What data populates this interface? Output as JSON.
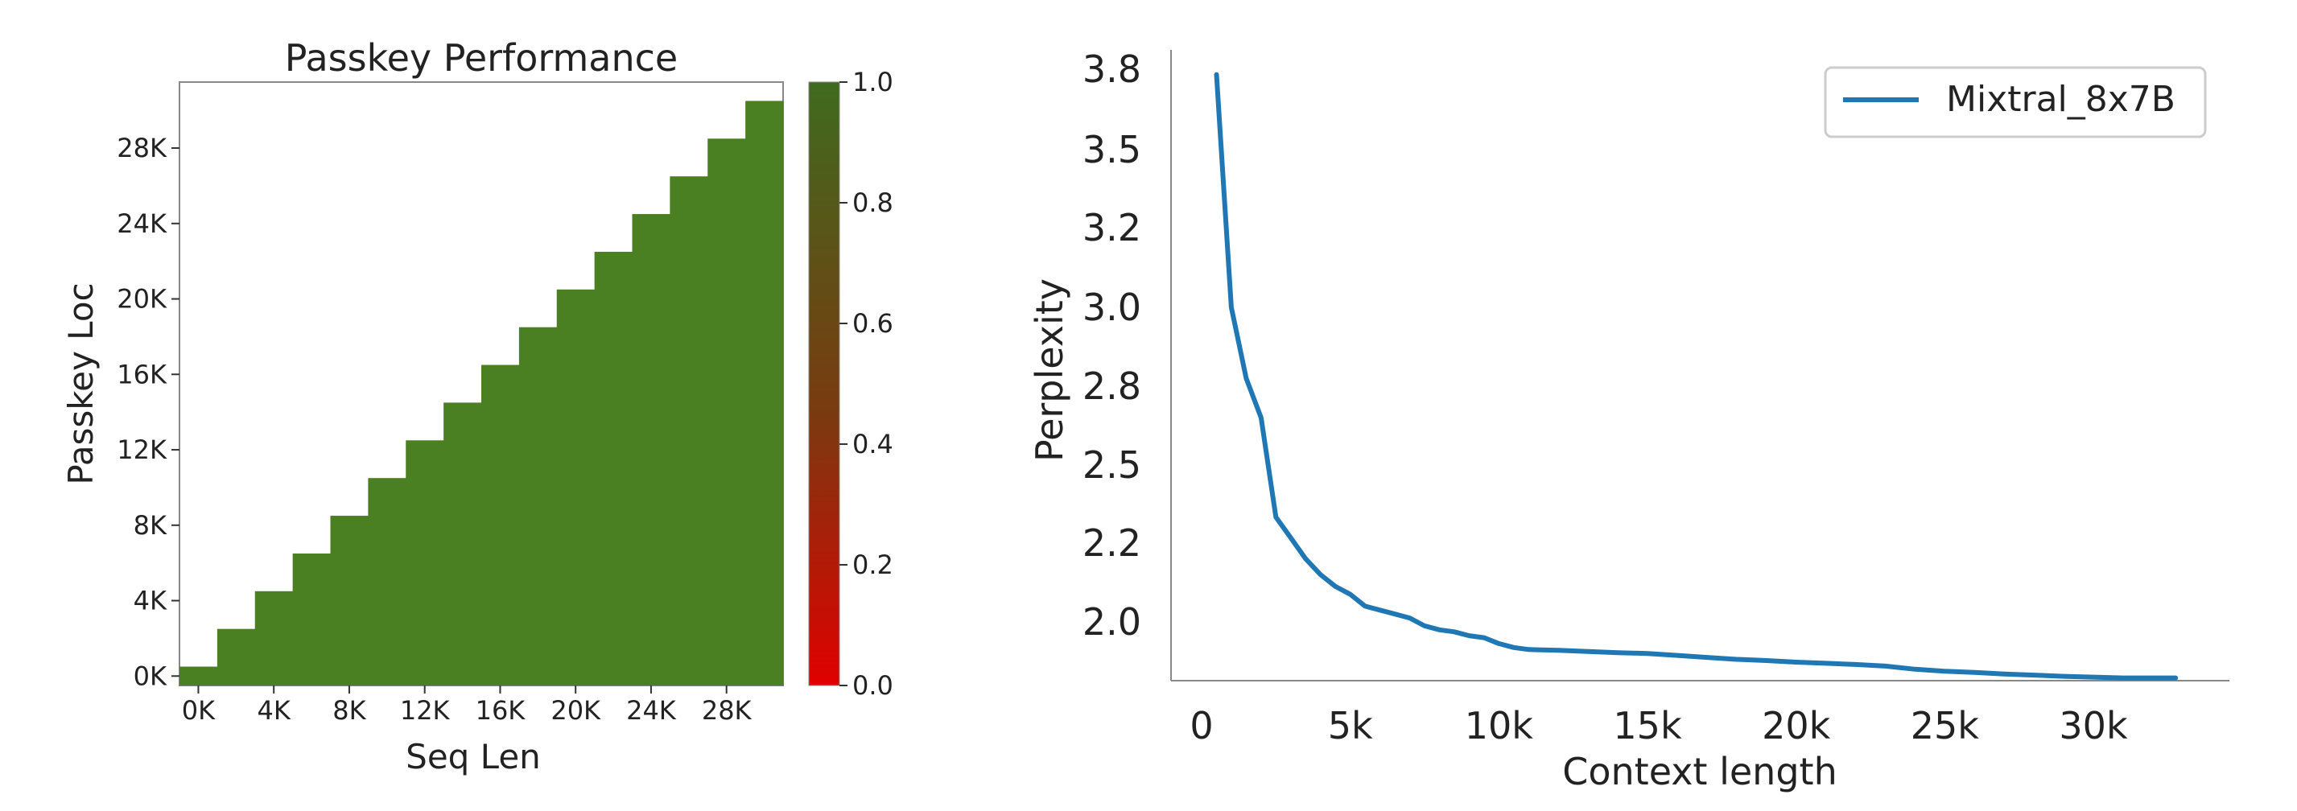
{
  "chart_data": [
    {
      "type": "heatmap",
      "title": "Passkey Performance",
      "xlabel": "Seq Len",
      "ylabel": "Passkey Loc",
      "x_tick_labels": [
        "0K",
        "4K",
        "8K",
        "12K",
        "16K",
        "20K",
        "24K",
        "28K"
      ],
      "y_tick_labels": [
        "0K",
        "4K",
        "8K",
        "12K",
        "16K",
        "20K",
        "24K",
        "28K"
      ],
      "colorbar": {
        "ticks": [
          "0.0",
          "0.2",
          "0.4",
          "0.6",
          "0.8",
          "1.0"
        ],
        "range": [
          0.0,
          1.0
        ],
        "low_color": "#e00000",
        "mid_color": "#7a3a10",
        "high_color": "#3f6b1e"
      },
      "cell_color": "#4a7f22",
      "seq_len_bins": [
        0,
        2,
        4,
        6,
        8,
        10,
        12,
        14,
        16,
        18,
        20,
        22,
        24,
        26,
        28,
        30
      ],
      "passkey_loc_max_by_seq_len": [
        1,
        3,
        5,
        7,
        9,
        11,
        13,
        15,
        17,
        19,
        21,
        23,
        25,
        27,
        29,
        31
      ],
      "value": 1.0,
      "grid": false
    },
    {
      "type": "line",
      "xlabel": "Context length",
      "ylabel": "Perplexity",
      "x_tick_labels": [
        "0",
        "5k",
        "10k",
        "15k",
        "20k",
        "25k",
        "30k"
      ],
      "y_tick_labels": [
        "2.0",
        "2.2",
        "2.5",
        "2.8",
        "3.0",
        "3.2",
        "3.5",
        "3.8"
      ],
      "legend_position": "top-right",
      "grid": false,
      "series": [
        {
          "name": "Mixtral_8x7B",
          "color": "#1f77b4",
          "x": [
            500,
            1000,
            1500,
            2000,
            2500,
            3000,
            3500,
            4000,
            4500,
            5000,
            5500,
            6000,
            6500,
            7000,
            7500,
            8000,
            8500,
            9000,
            9500,
            10000,
            10500,
            11000,
            12000,
            13000,
            14000,
            15000,
            16000,
            17000,
            18000,
            19000,
            20000,
            21000,
            22000,
            23000,
            24000,
            25000,
            26000,
            27000,
            28000,
            29000,
            30000,
            31000,
            32000,
            32768
          ],
          "y": [
            3.78,
            3.0,
            2.82,
            2.68,
            2.3,
            2.22,
            2.16,
            2.12,
            2.09,
            2.07,
            2.04,
            2.03,
            2.02,
            2.01,
            1.99,
            1.98,
            1.975,
            1.965,
            1.96,
            1.945,
            1.935,
            1.93,
            1.928,
            1.925,
            1.922,
            1.92,
            1.915,
            1.91,
            1.905,
            1.902,
            1.898,
            1.895,
            1.892,
            1.888,
            1.88,
            1.875,
            1.872,
            1.868,
            1.865,
            1.862,
            1.86,
            1.858,
            1.858,
            1.858
          ]
        }
      ]
    }
  ]
}
